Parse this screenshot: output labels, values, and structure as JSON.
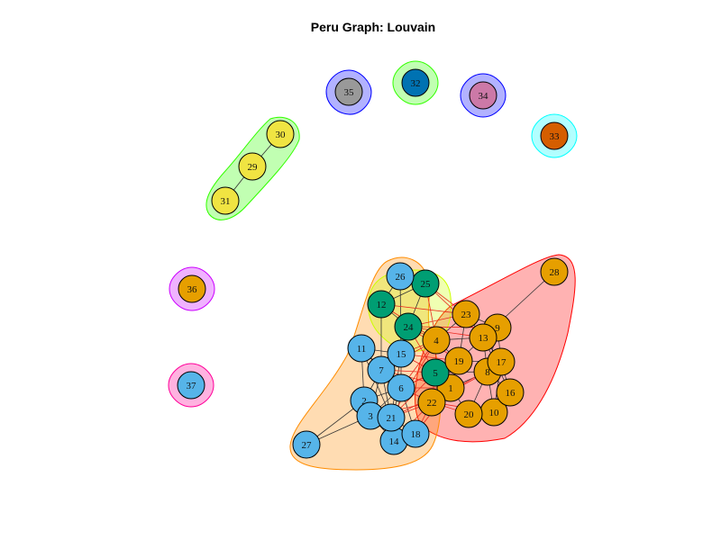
{
  "title": "Peru Graph: Louvain",
  "colors": {
    "orange": "#E69F00",
    "blue": "#56B4E9",
    "green": "#009E73",
    "yellow": "#F0E442",
    "darkblue": "#0072B2",
    "vermillion": "#D55E00",
    "pink": "#CC79A7",
    "gray": "#999999"
  },
  "communities": [
    {
      "name": "red",
      "fill": "#FF0000",
      "stroke": "#FF0000"
    },
    {
      "name": "peach",
      "fill": "#FF8C00",
      "stroke": "#FF8C00"
    },
    {
      "name": "lightyellow",
      "fill": "#CCFF00",
      "stroke": "#CCFF00"
    },
    {
      "name": "lightgreen",
      "fill": "#33FF00",
      "stroke": "#33FF00"
    },
    {
      "name": "blue",
      "fill": "#0000FF",
      "stroke": "#0000FF"
    },
    {
      "name": "cyan",
      "fill": "#00FFFF",
      "stroke": "#00FFFF"
    },
    {
      "name": "magenta",
      "fill": "#CC00FF",
      "stroke": "#CC00FF"
    },
    {
      "name": "pink",
      "fill": "#FF0099",
      "stroke": "#FF0099"
    }
  ],
  "nodes": [
    {
      "id": "1",
      "color": "orange"
    },
    {
      "id": "2",
      "color": "blue"
    },
    {
      "id": "3",
      "color": "blue"
    },
    {
      "id": "4",
      "color": "orange"
    },
    {
      "id": "5",
      "color": "green"
    },
    {
      "id": "6",
      "color": "blue"
    },
    {
      "id": "7",
      "color": "blue"
    },
    {
      "id": "8",
      "color": "orange"
    },
    {
      "id": "9",
      "color": "orange"
    },
    {
      "id": "10",
      "color": "orange"
    },
    {
      "id": "11",
      "color": "blue"
    },
    {
      "id": "12",
      "color": "green"
    },
    {
      "id": "13",
      "color": "orange"
    },
    {
      "id": "14",
      "color": "blue"
    },
    {
      "id": "15",
      "color": "blue"
    },
    {
      "id": "16",
      "color": "orange"
    },
    {
      "id": "17",
      "color": "orange"
    },
    {
      "id": "18",
      "color": "blue"
    },
    {
      "id": "19",
      "color": "orange"
    },
    {
      "id": "20",
      "color": "orange"
    },
    {
      "id": "21",
      "color": "blue"
    },
    {
      "id": "22",
      "color": "orange"
    },
    {
      "id": "23",
      "color": "orange"
    },
    {
      "id": "24",
      "color": "green"
    },
    {
      "id": "25",
      "color": "green"
    },
    {
      "id": "26",
      "color": "blue"
    },
    {
      "id": "27",
      "color": "blue"
    },
    {
      "id": "28",
      "color": "orange"
    },
    {
      "id": "29",
      "color": "yellow"
    },
    {
      "id": "30",
      "color": "yellow"
    },
    {
      "id": "31",
      "color": "yellow"
    },
    {
      "id": "32",
      "color": "darkblue"
    },
    {
      "id": "33",
      "color": "vermillion"
    },
    {
      "id": "34",
      "color": "pink"
    },
    {
      "id": "35",
      "color": "gray"
    },
    {
      "id": "36",
      "color": "orange"
    },
    {
      "id": "37",
      "color": "blue"
    }
  ]
}
